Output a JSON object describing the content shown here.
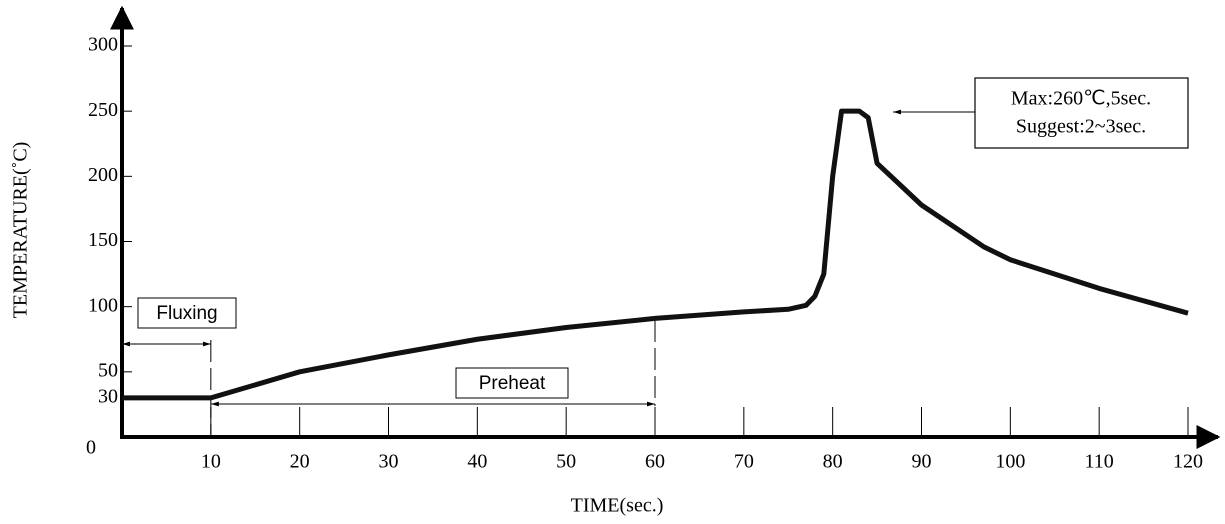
{
  "chart_data": {
    "type": "line",
    "x_label": "TIME(sec.)",
    "y_label": "TEMPERATURE(˚C)",
    "xlim": [
      0,
      120
    ],
    "ylim": [
      0,
      300
    ],
    "xticks": [
      10,
      20,
      30,
      40,
      50,
      60,
      70,
      80,
      90,
      100,
      110,
      120
    ],
    "yticks": [
      0,
      30,
      50,
      100,
      150,
      200,
      250,
      300
    ],
    "x": [
      0,
      10,
      20,
      30,
      40,
      50,
      60,
      70,
      75,
      77,
      78,
      79,
      80,
      81,
      83,
      84,
      85,
      90,
      97,
      100,
      110,
      120
    ],
    "series": [
      {
        "color": "#111111",
        "values": [
          30,
          30,
          50,
          63,
          75,
          84,
          91,
          96,
          98,
          101,
          108,
          125,
          200,
          250,
          250,
          245,
          210,
          178,
          146,
          136,
          114,
          95
        ]
      }
    ],
    "annotations": [
      {
        "label": "Fluxing",
        "start": 0,
        "end": 10
      },
      {
        "label": "Preheat",
        "start": 10,
        "end": 60
      }
    ],
    "callout": [
      "Max:260℃,5sec.",
      "Suggest:2~3sec."
    ]
  }
}
